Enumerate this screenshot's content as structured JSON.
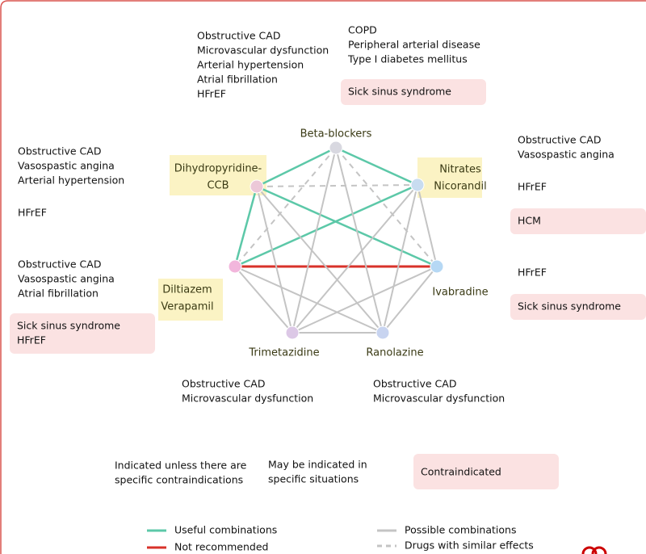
{
  "nodes": [
    {
      "label": [
        "Beta-blockers"
      ],
      "indicated": [
        "Obstructive CAD",
        "Microvascular dysfunction",
        "Arterial hypertension",
        "Atrial fibrillation",
        "HFrEF"
      ],
      "may_be_indicated": [
        "COPD",
        "Peripheral arterial disease",
        "Type I diabetes mellitus"
      ],
      "contraindicated": [
        "Sick sinus syndrome"
      ]
    },
    {
      "label": [
        "Dihydropyridine-",
        "CCB"
      ],
      "indicated": [
        "Obstructive CAD",
        "Vasospastic angina",
        "Arterial hypertension"
      ],
      "may_be_indicated": [
        "HFrEF"
      ],
      "contraindicated": []
    },
    {
      "label": [
        "Nitrates",
        "Nicorandil"
      ],
      "indicated": [
        "Obstructive CAD",
        "Vasospastic angina"
      ],
      "may_be_indicated": [
        "HFrEF"
      ],
      "contraindicated": [
        "HCM"
      ]
    },
    {
      "label": [
        "Diltiazem",
        "Verapamil"
      ],
      "indicated": [
        "Obstructive CAD",
        "Vasospastic angina",
        "Atrial fibrillation"
      ],
      "may_be_indicated": [],
      "contraindicated": [
        "Sick sinus syndrome",
        "HFrEF"
      ]
    },
    {
      "label": [
        "Ivabradine"
      ],
      "indicated": [],
      "may_be_indicated": [
        "HFrEF"
      ],
      "contraindicated": [
        "Sick sinus syndrome"
      ]
    },
    {
      "label": [
        "Trimetazidine"
      ],
      "indicated": [
        "Obstructive CAD",
        "Microvascular dysfunction"
      ],
      "may_be_indicated": [],
      "contraindicated": []
    },
    {
      "label": [
        "Ranolazine"
      ],
      "indicated": [
        "Obstructive CAD",
        "Microvascular dysfunction"
      ],
      "may_be_indicated": [],
      "contraindicated": []
    }
  ],
  "edges": [
    {
      "from": 0,
      "to": 1,
      "kind": 0
    },
    {
      "from": 0,
      "to": 2,
      "kind": 0
    },
    {
      "from": 1,
      "to": 3,
      "kind": 0
    },
    {
      "from": 1,
      "to": 4,
      "kind": 0
    },
    {
      "from": 2,
      "to": 3,
      "kind": 0
    },
    {
      "from": 3,
      "to": 4,
      "kind": 1
    },
    {
      "from": 0,
      "to": 3,
      "kind": 3
    },
    {
      "from": 0,
      "to": 4,
      "kind": 3
    },
    {
      "from": 1,
      "to": 2,
      "kind": 3
    },
    {
      "from": 0,
      "to": 5,
      "kind": 2
    },
    {
      "from": 0,
      "to": 6,
      "kind": 2
    },
    {
      "from": 1,
      "to": 5,
      "kind": 2
    },
    {
      "from": 1,
      "to": 6,
      "kind": 2
    },
    {
      "from": 2,
      "to": 4,
      "kind": 2
    },
    {
      "from": 2,
      "to": 5,
      "kind": 2
    },
    {
      "from": 2,
      "to": 6,
      "kind": 2
    },
    {
      "from": 3,
      "to": 5,
      "kind": 2
    },
    {
      "from": 3,
      "to": 6,
      "kind": 2
    },
    {
      "from": 4,
      "to": 5,
      "kind": 2
    },
    {
      "from": 4,
      "to": 6,
      "kind": 2
    },
    {
      "from": 5,
      "to": 6,
      "kind": 2
    }
  ],
  "key": [
    [
      "Indicated unless there are",
      "specific contraindications"
    ],
    [
      "May be indicated in",
      "specific situations"
    ],
    [
      "Contraindicated"
    ]
  ],
  "legend": [
    "Useful combinations",
    "Not recommended",
    "Possible combinations",
    "Drugs with similar effects"
  ]
}
